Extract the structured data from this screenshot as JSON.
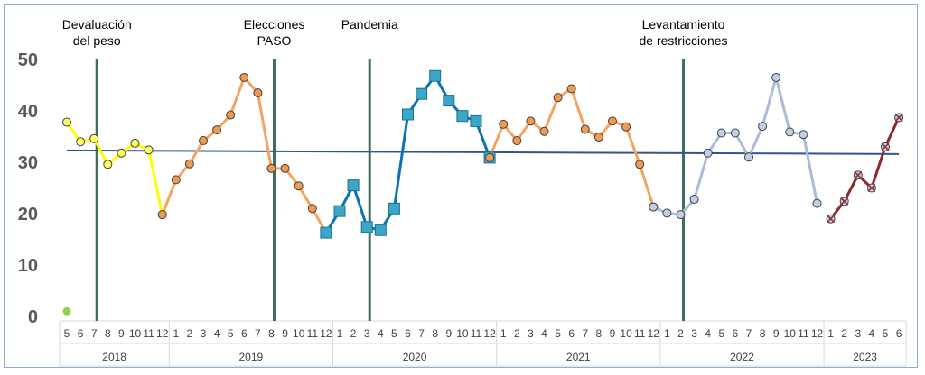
{
  "chart_data": {
    "type": "line",
    "ylim": [
      0,
      50
    ],
    "y_ticks": [
      "0",
      "10",
      "20",
      "30",
      "40",
      "50"
    ],
    "x_month_labels": [
      "5",
      "6",
      "7",
      "8",
      "9",
      "10",
      "11",
      "12",
      "1",
      "2",
      "3",
      "4",
      "5",
      "6",
      "7",
      "8",
      "9",
      "10",
      "11",
      "12",
      "1",
      "2",
      "3",
      "4",
      "5",
      "6",
      "7",
      "8",
      "9",
      "10",
      "11",
      "12",
      "1",
      "2",
      "3",
      "4",
      "5",
      "6",
      "7",
      "8",
      "9",
      "10",
      "11",
      "12",
      "1",
      "2",
      "3",
      "4",
      "5",
      "6",
      "7",
      "8",
      "9",
      "10",
      "11",
      "12",
      "1",
      "2",
      "3",
      "4",
      "5",
      "6"
    ],
    "years": [
      {
        "label": "2018",
        "start": 0,
        "end": 7
      },
      {
        "label": "2019",
        "start": 8,
        "end": 19
      },
      {
        "label": "2020",
        "start": 20,
        "end": 31
      },
      {
        "label": "2021",
        "start": 32,
        "end": 43
      },
      {
        "label": "2022",
        "start": 44,
        "end": 55
      },
      {
        "label": "2023",
        "start": 56,
        "end": 61
      }
    ],
    "series": [
      {
        "color": "#ffff00",
        "marker": "circle",
        "marker_fill": "#ffff66",
        "start": 0,
        "values": [
          37.8,
          34.0,
          34.6,
          29.6,
          31.8,
          33.7,
          32.4,
          19.8
        ]
      },
      {
        "color": "#f4a460",
        "marker": "circle",
        "marker_fill": "#f09a4f",
        "start": 7,
        "values": [
          19.8,
          26.6,
          29.7,
          34.2,
          36.3,
          39.2,
          46.5,
          43.5,
          28.8,
          28.8,
          25.4,
          21.0,
          16.3
        ]
      },
      {
        "color": "#0b72b5",
        "marker": "square",
        "marker_fill": "#3aa7c8",
        "start": 19,
        "values": [
          16.3,
          20.5,
          25.5,
          17.4,
          16.8,
          21.0,
          39.3,
          43.3,
          46.8,
          42.0,
          39.0,
          38.0,
          30.9
        ]
      },
      {
        "color": "#f4a460",
        "marker": "circle",
        "marker_fill": "#f09a4f",
        "start": 31,
        "values": [
          30.9,
          37.4,
          34.2,
          38.0,
          36.0,
          42.6,
          44.3,
          36.4,
          34.9,
          38.0,
          36.9,
          29.6,
          21.3
        ]
      },
      {
        "color": "#a9bcd8",
        "marker": "circle",
        "marker_fill": "#c0cee6",
        "start": 43,
        "values": [
          21.3,
          20.1,
          19.8,
          22.8,
          31.8,
          35.7,
          35.7,
          31.0,
          37.0,
          46.5,
          35.9,
          35.4,
          22.0
        ]
      },
      {
        "color": "#8b2c2c",
        "marker": "x-circle",
        "marker_fill": "#c0cee6",
        "start": 56,
        "values": [
          19.0,
          22.4,
          27.5,
          25.0,
          33.0,
          38.7
        ]
      }
    ],
    "trend_line": {
      "color": "#2f5597",
      "from": 32.3,
      "to": 31.6
    },
    "extra_point": {
      "x_index": 0,
      "value": 1.0,
      "color": "#92d050"
    },
    "event_lines": [
      {
        "label_line1": "Devaluación",
        "label_line2": "del peso",
        "at_index": 2.2
      },
      {
        "label_line1": "Elecciones",
        "label_line2": "PASO",
        "at_index": 15.2
      },
      {
        "label_line1": "Pandemia",
        "label_line2": "",
        "at_index": 22.2
      },
      {
        "label_line1": "Levantamiento",
        "label_line2": "de restricciones",
        "at_index": 45.2
      }
    ]
  }
}
